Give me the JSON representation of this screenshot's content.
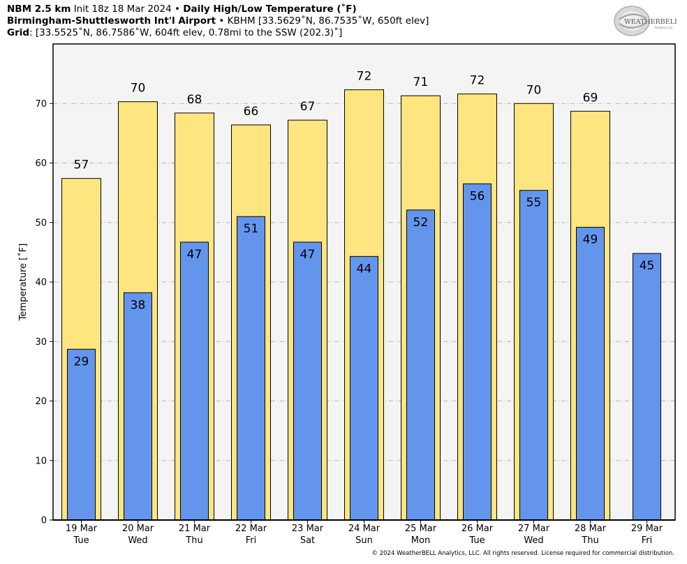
{
  "header": {
    "line1_model": "NBM 2.5 km",
    "line1_init": "Init 18z 18 Mar 2024",
    "line1_sep": "•",
    "line1_title": "Daily High/Low Temperature (˚F)",
    "line2_station": "Birmingham-Shuttlesworth Int'l Airport",
    "line2_sep": "•",
    "line2_details": "KBHM [33.5629˚N, 86.7535˚W, 650ft elev]",
    "line3_label": "Grid",
    "line3_details": ": [33.5525˚N, 86.7586˚W, 604ft elev, 0.78mi to the SSW (202.3)˚]"
  },
  "logo": {
    "text_main": "WEATHERBELL",
    "text_sub": "Analytics LLC"
  },
  "footer": {
    "copyright": "© 2024 WeatherBELL Analytics, LLC. All rights reserved. License required for commercial distribution."
  },
  "chart_data": {
    "type": "bar",
    "ylabel": "Temperature [˚F]",
    "ylim": [
      0,
      80
    ],
    "yticks": [
      0,
      10,
      20,
      30,
      40,
      50,
      60,
      70
    ],
    "grid": true,
    "categories": [
      "19 Mar",
      "20 Mar",
      "21 Mar",
      "22 Mar",
      "23 Mar",
      "24 Mar",
      "25 Mar",
      "26 Mar",
      "27 Mar",
      "28 Mar",
      "29 Mar"
    ],
    "weekdays": [
      "Tue",
      "Wed",
      "Thu",
      "Fri",
      "Sat",
      "Sun",
      "Mon",
      "Tue",
      "Wed",
      "Thu",
      "Fri"
    ],
    "series": [
      {
        "values": [
          57.4,
          70.3,
          68.4,
          66.4,
          67.2,
          72.3,
          71.3,
          71.6,
          70.0,
          68.7,
          null
        ],
        "labels": [
          "57",
          "70",
          "68",
          "66",
          "67",
          "72",
          "71",
          "72",
          "70",
          "69",
          ""
        ],
        "color": "#FFE57F"
      },
      {
        "values": [
          28.7,
          38.2,
          46.7,
          51.0,
          46.7,
          44.3,
          52.1,
          56.5,
          55.4,
          49.2,
          44.8
        ],
        "labels": [
          "29",
          "38",
          "47",
          "51",
          "47",
          "44",
          "52",
          "56",
          "55",
          "49",
          "45"
        ],
        "color": "#6495ED"
      }
    ]
  },
  "colors": {
    "plot_bg": "#F4F4F4",
    "high_bar": "#FFE57F",
    "low_bar": "#6495ED",
    "grid": "#B4B4B4"
  }
}
